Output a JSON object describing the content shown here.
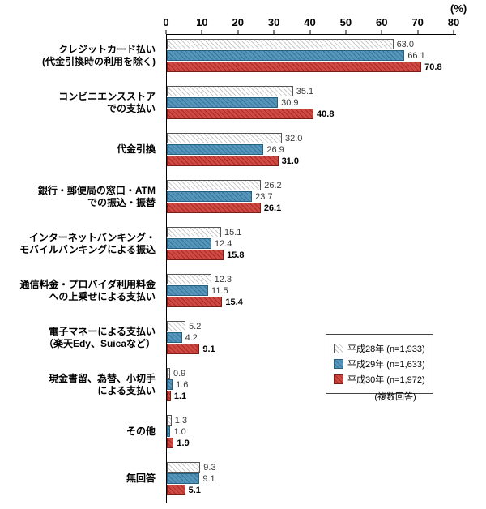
{
  "chart_data": {
    "type": "bar",
    "orientation": "horizontal",
    "title": "",
    "unit_label": "(%)",
    "xlim": [
      0,
      80
    ],
    "ticks": [
      0,
      10,
      20,
      30,
      40,
      50,
      60,
      70,
      80
    ],
    "grid": false,
    "legend_position": "right-middle",
    "legend_note": "(複数回答)",
    "categories": [
      "クレジットカード払い\n(代金引換時の利用を除く)",
      "コンビニエンスストア\nでの支払い",
      "代金引換",
      "銀行・郵便局の窓口・ATM\nでの振込・振替",
      "インターネットバンキング・\nモバイルバンキングによる振込",
      "通信料金・プロバイダ利用料金\nへの上乗せによる支払い",
      "電子マネーによる支払い\n（楽天Edy、Suicaなど）",
      "現金書留、為替、小切手\nによる支払い",
      "その他",
      "無回答"
    ],
    "series": [
      {
        "key": "h28",
        "name": "平成28年 (n=1,933)",
        "values": [
          63.0,
          35.1,
          32.0,
          26.2,
          15.1,
          12.3,
          5.2,
          0.9,
          1.3,
          9.3
        ]
      },
      {
        "key": "h29",
        "name": "平成29年 (n=1,633)",
        "values": [
          66.1,
          30.9,
          26.9,
          23.7,
          12.4,
          11.5,
          4.2,
          1.6,
          1.0,
          9.1
        ]
      },
      {
        "key": "h30",
        "name": "平成30年 (n=1,972)",
        "values": [
          70.8,
          40.8,
          31.0,
          26.1,
          15.8,
          15.4,
          9.1,
          1.1,
          1.9,
          5.1
        ]
      }
    ],
    "colors": {
      "h28": "#ffffff",
      "h29": "#5596ba",
      "h30": "#cf4a42"
    }
  }
}
